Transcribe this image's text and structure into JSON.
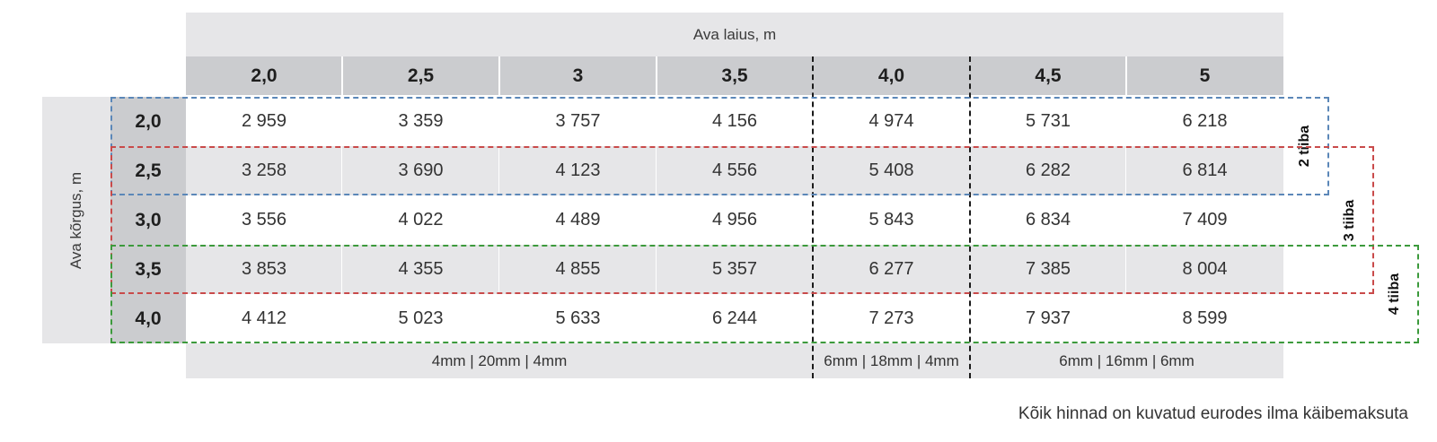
{
  "table": {
    "width_label": "Ava laius, m",
    "height_label": "Ava kõrgus, m",
    "columns": [
      "2,0",
      "2,5",
      "3",
      "3,5",
      "4,0",
      "4,5",
      "5"
    ],
    "rows": [
      {
        "label": "2,0",
        "values": [
          "2 959",
          "3 359",
          "3 757",
          "4 156",
          "4 974",
          "5 731",
          "6 218"
        ]
      },
      {
        "label": "2,5",
        "values": [
          "3 258",
          "3 690",
          "4 123",
          "4 556",
          "5 408",
          "6 282",
          "6 814"
        ]
      },
      {
        "label": "3,0",
        "values": [
          "3 556",
          "4 022",
          "4 489",
          "4 956",
          "5 843",
          "6 834",
          "7 409"
        ]
      },
      {
        "label": "3,5",
        "values": [
          "3 853",
          "4 355",
          "4 855",
          "5 357",
          "6 277",
          "7 385",
          "8 004"
        ]
      },
      {
        "label": "4,0",
        "values": [
          "4 412",
          "5 023",
          "5 633",
          "6 244",
          "7 273",
          "7 937",
          "8 599"
        ]
      }
    ],
    "glass": [
      "4mm | 20mm | 4mm",
      "6mm | 18mm | 4mm",
      "6mm | 16mm | 6mm"
    ]
  },
  "groups": [
    {
      "label": "2 tiiba",
      "color": "#5b87b8"
    },
    {
      "label": "3 tiiba",
      "color": "#c94a4a"
    },
    {
      "label": "4 tiiba",
      "color": "#3c9a3c"
    }
  ],
  "note": "Kõik hinnad on kuvatud eurodes ilma käibemaksuta"
}
